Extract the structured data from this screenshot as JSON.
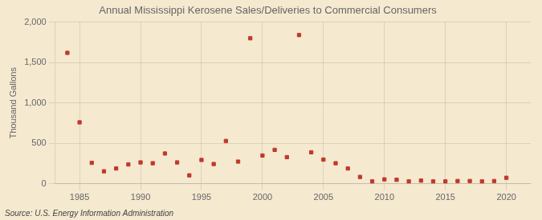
{
  "chart_data": {
    "type": "scatter",
    "title": "Annual Mississippi Kerosene Sales/Deliveries to Commercial Consumers",
    "ylabel": "Thousand Gallons",
    "annotations": [
      "Source: U.S. Energy Information Administration"
    ],
    "x": [
      1984,
      1985,
      1986,
      1987,
      1988,
      1989,
      1990,
      1991,
      1992,
      1993,
      1994,
      1995,
      1996,
      1997,
      1998,
      1999,
      2000,
      2001,
      2002,
      2003,
      2004,
      2005,
      2006,
      2007,
      2008,
      2009,
      2010,
      2011,
      2012,
      2013,
      2014,
      2015,
      2016,
      2017,
      2018,
      2019,
      2020
    ],
    "values": [
      1620,
      760,
      260,
      155,
      190,
      240,
      265,
      255,
      375,
      265,
      105,
      295,
      245,
      530,
      275,
      1800,
      350,
      420,
      330,
      1840,
      390,
      300,
      255,
      190,
      85,
      30,
      55,
      50,
      30,
      40,
      30,
      30,
      35,
      35,
      30,
      35,
      75
    ],
    "color": "#c0392b",
    "marker": "square",
    "xlim": [
      1983,
      2022
    ],
    "xticks": [
      1985,
      1990,
      1995,
      2000,
      2005,
      2010,
      2015,
      2020
    ],
    "ylim": [
      0,
      2000
    ],
    "yticks": [
      0,
      500,
      {
        "value": 1000,
        "label": "1,000"
      },
      {
        "value": 1500,
        "label": "1,500"
      },
      {
        "value": 2000,
        "label": "2,000"
      }
    ],
    "grid": true
  }
}
